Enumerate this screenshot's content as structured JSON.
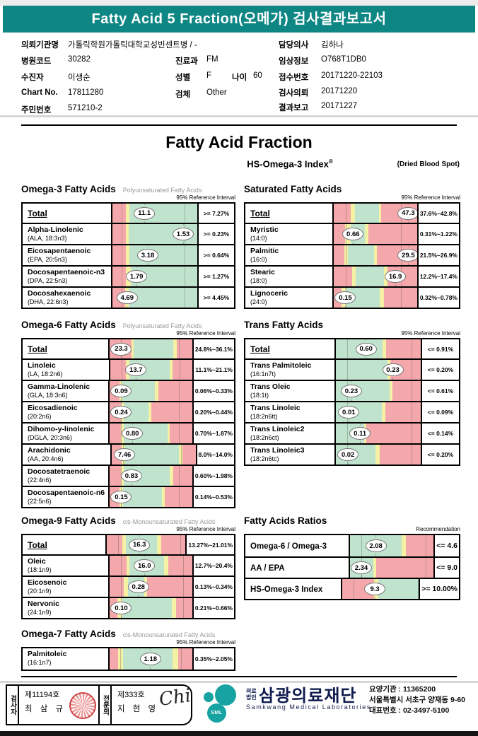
{
  "banner": {
    "title": "Fatty Acid 5 Fraction(오메가) 검사결과보고서"
  },
  "patient": {
    "org_label": "의뢰기관명",
    "org": "가톨릭학원가톨릭대학교성빈센트병 / -",
    "doctor_label": "담당의사",
    "doctor": "김하나",
    "hosp_code_label": "병원코드",
    "hosp_code": "30282",
    "dept_label": "진료과",
    "dept": "FM",
    "clinical_label": "임상정보",
    "clinical": "O768T1DB0",
    "patient_label": "수진자",
    "patient_name": "이생순",
    "sex_label": "성별",
    "sex": "F",
    "age_label": "나이",
    "age": "60",
    "recv_label": "접수번호",
    "recv_no": "20171220-22103",
    "chart_label": "Chart No.",
    "chart_no": "17811280",
    "specimen_label": "검체",
    "specimen": "Other",
    "request_label": "검사의뢰",
    "request_date": "20171220",
    "jumin_label": "주민번호",
    "jumin": "571210-2",
    "report_label": "결과보고",
    "report_date": "20171227"
  },
  "titles": {
    "main": "Fatty Acid Fraction",
    "hs_index": "HS-Omega-3 Index",
    "reg_mark": "®",
    "dried": "(Dried Blood Spot)"
  },
  "colors": {
    "banner": "#0d8684",
    "zone_red": "#f5a8ab",
    "zone_yellow": "#f4f0a4",
    "zone_green": "#bfe3cd",
    "navy": "#101c4e",
    "logo_teal": "#16a3a1",
    "stamp_red": "#cc3333"
  },
  "sections": [
    {
      "id": "omega3",
      "title": "Omega-3 Fatty Acids",
      "subtitle": "Polyunsaturated Fatty Acids",
      "scale_label": "95% Reference Interval",
      "gridlines": [
        11,
        84
      ],
      "rows": [
        {
          "name": "Total",
          "formula": "",
          "total": true,
          "value": "11.1",
          "pos": 37,
          "ref": ">= 7.27%",
          "segments": [
            [
              "r",
              16
            ],
            [
              "y",
              4
            ],
            [
              "g",
              80
            ]
          ]
        },
        {
          "name": "Alpha-Linolenic",
          "formula": "(ALA, 18:3n3)",
          "value": "1.53",
          "pos": 82,
          "ref": ">= 0.23%",
          "segments": [
            [
              "r",
              16
            ],
            [
              "y",
              3
            ],
            [
              "g",
              81
            ]
          ]
        },
        {
          "name": "Eicosapentaenoic",
          "formula": "(EPA, 20:5n3)",
          "value": "3.18",
          "pos": 41,
          "ref": ">= 0.64%",
          "segments": [
            [
              "r",
              16
            ],
            [
              "y",
              4
            ],
            [
              "g",
              80
            ]
          ]
        },
        {
          "name": "Docosapentaenoic-n3",
          "formula": "(DPA, 22:5n3)",
          "value": "1.79",
          "pos": 28,
          "ref": ">= 1.27%",
          "segments": [
            [
              "r",
              16
            ],
            [
              "y",
              6
            ],
            [
              "g",
              78
            ]
          ]
        },
        {
          "name": "Docosahexaenoic",
          "formula": "(DHA, 22:6n3)",
          "value": "4.69",
          "pos": 17,
          "ref": ">= 4.45%",
          "segments": [
            [
              "r",
              15
            ],
            [
              "y",
              4
            ],
            [
              "g",
              81
            ]
          ]
        }
      ]
    },
    {
      "id": "saturated",
      "title": "Saturated Fatty Acids",
      "subtitle": "",
      "scale_label": "95% Reference Interval",
      "gridlines": [
        14,
        78
      ],
      "rows": [
        {
          "name": "Total",
          "formula": "",
          "total": true,
          "value": "47.3",
          "pos": 86,
          "ref": "37.6%~42.8%",
          "segments": [
            [
              "r",
              20
            ],
            [
              "y",
              5
            ],
            [
              "g",
              29
            ],
            [
              "y",
              3
            ],
            [
              "r",
              43
            ]
          ]
        },
        {
          "name": "Myristic",
          "formula": "(14:0)",
          "value": "0.66",
          "pos": 22,
          "ref": "0.31%~1.22%",
          "segments": [
            [
              "r",
              13
            ],
            [
              "y",
              7
            ],
            [
              "g",
              17
            ],
            [
              "y",
              4
            ],
            [
              "r",
              59
            ]
          ]
        },
        {
          "name": "Palmitic",
          "formula": "(16:0)",
          "value": "29.5",
          "pos": 86,
          "ref": "21.5%~26.9%",
          "segments": [
            [
              "r",
              12
            ],
            [
              "y",
              5
            ],
            [
              "g",
              31
            ],
            [
              "y",
              4
            ],
            [
              "r",
              48
            ]
          ]
        },
        {
          "name": "Stearic",
          "formula": "(18:0)",
          "value": "16.9",
          "pos": 71,
          "ref": "12.2%~17.4%",
          "segments": [
            [
              "r",
              22
            ],
            [
              "y",
              4
            ],
            [
              "g",
              34
            ],
            [
              "y",
              4
            ],
            [
              "r",
              36
            ]
          ]
        },
        {
          "name": "Lignoceric",
          "formula": "(24:0)",
          "value": "0.15",
          "pos": 7,
          "ref": "0.32%~0.78%",
          "segments": [
            [
              "r",
              9
            ],
            [
              "y",
              5
            ],
            [
              "g",
              41
            ],
            [
              "y",
              5
            ],
            [
              "r",
              40
            ]
          ]
        }
      ]
    },
    {
      "id": "omega6",
      "title": "Omega-6 Fatty Acids",
      "subtitle": "Polyunsaturated Fatty Acids",
      "scale_label": "95% Reference Interval",
      "gridlines": [
        13,
        80
      ],
      "rows": [
        {
          "name": "Total",
          "formula": "",
          "total": true,
          "value": "23.3",
          "pos": 13,
          "ref": "24.8%~36.1%",
          "segments": [
            [
              "r",
              26
            ],
            [
              "y",
              3
            ],
            [
              "g",
              48
            ],
            [
              "y",
              4
            ],
            [
              "r",
              19
            ]
          ]
        },
        {
          "name": "Linoleic",
          "formula": "(LA, 18:2n6)",
          "value": "13.7",
          "pos": 30,
          "ref": "11.1%~21.1%",
          "segments": [
            [
              "r",
              19
            ],
            [
              "y",
              4
            ],
            [
              "g",
              49
            ],
            [
              "y",
              4
            ],
            [
              "r",
              24
            ]
          ]
        },
        {
          "name": "Gamma-Linolenic",
          "formula": "(GLA, 18:3n6)",
          "value": "0.09",
          "pos": 13,
          "ref": "0.06%~0.33%",
          "segments": [
            [
              "r",
              12
            ],
            [
              "y",
              3
            ],
            [
              "g",
              40
            ],
            [
              "y",
              4
            ],
            [
              "r",
              41
            ]
          ]
        },
        {
          "name": "Eicosadienoic",
          "formula": "(20:2n6)",
          "value": "0.24",
          "pos": 13,
          "ref": "0.20%~0.44%",
          "segments": [
            [
              "r",
              13
            ],
            [
              "y",
              4
            ],
            [
              "g",
              30
            ],
            [
              "y",
              3
            ],
            [
              "r",
              50
            ]
          ]
        },
        {
          "name": "Dihomo-y-linolenic",
          "formula": "(DGLA, 20:3n6)",
          "value": "0.80",
          "pos": 26,
          "ref": "0.70%~1.87%",
          "segments": [
            [
              "r",
              13
            ],
            [
              "y",
              4
            ],
            [
              "g",
              53
            ],
            [
              "y",
              3
            ],
            [
              "r",
              27
            ]
          ]
        },
        {
          "name": "Arachidonic",
          "formula": "(AA, 20:4n6)",
          "value": "7.46",
          "pos": 15,
          "ref": "8.0%~14.0%",
          "segments": [
            [
              "r",
              12
            ],
            [
              "y",
              4
            ],
            [
              "g",
              64
            ],
            [
              "y",
              4
            ],
            [
              "r",
              16
            ]
          ]
        },
        {
          "name": "Docosatetraenoic",
          "formula": "(22:4n6)",
          "value": "0.83",
          "pos": 25,
          "ref": "0.60%~1.98%",
          "segments": [
            [
              "r",
              13
            ],
            [
              "y",
              4
            ],
            [
              "g",
              56
            ],
            [
              "y",
              4
            ],
            [
              "r",
              23
            ]
          ]
        },
        {
          "name": "Docosapentaenoic-n6",
          "formula": "(22:5n6)",
          "value": "0.15",
          "pos": 13,
          "ref": "0.14%~0.53%",
          "segments": [
            [
              "r",
              12
            ],
            [
              "y",
              4
            ],
            [
              "g",
              47
            ],
            [
              "y",
              4
            ],
            [
              "r",
              33
            ]
          ]
        }
      ]
    },
    {
      "id": "trans",
      "title": "Trans Fatty Acids",
      "subtitle": "",
      "scale_label": "95% Reference Interval",
      "gridlines": [
        13,
        88
      ],
      "rows": [
        {
          "name": "Total",
          "formula": "",
          "total": true,
          "value": "0.60",
          "pos": 35,
          "ref": "<= 0.91%",
          "segments": [
            [
              "g",
              55
            ],
            [
              "y",
              4
            ],
            [
              "r",
              41
            ]
          ]
        },
        {
          "name": "Trans Palmitoleic",
          "formula": "(16:1n7t)",
          "value": "0.23",
          "pos": 66,
          "ref": "<= 0.20%",
          "segments": [
            [
              "g",
              61
            ],
            [
              "y",
              3
            ],
            [
              "r",
              36
            ]
          ]
        },
        {
          "name": "Trans Oleic",
          "formula": "(18:1t)",
          "value": "0.23",
          "pos": 18,
          "ref": "<= 0.61%",
          "segments": [
            [
              "g",
              63
            ],
            [
              "y",
              4
            ],
            [
              "r",
              33
            ]
          ]
        },
        {
          "name": "Trans Linoleic",
          "formula": "(18:2n6tt)",
          "value": "0.01",
          "pos": 15,
          "ref": "<= 0.09%",
          "segments": [
            [
              "g",
              54
            ],
            [
              "y",
              4
            ],
            [
              "r",
              42
            ]
          ]
        },
        {
          "name": "Trans Linoleic2",
          "formula": "(18:2n6ct)",
          "value": "0.11",
          "pos": 28,
          "ref": "<= 0.14%",
          "segments": [
            [
              "g",
              33
            ],
            [
              "y",
              3
            ],
            [
              "r",
              64
            ]
          ]
        },
        {
          "name": "Trans Linoleic3",
          "formula": "(18:2n6tc)",
          "value": "0.02",
          "pos": 14,
          "ref": "<= 0.20%",
          "segments": [
            [
              "g",
              47
            ],
            [
              "y",
              5
            ],
            [
              "r",
              48
            ]
          ]
        }
      ]
    },
    {
      "id": "omega9",
      "title": "Omega-9 Fatty Acids",
      "subtitle": "cis-Monounsaturated Fatty Acids",
      "scale_label": "95% Reference Interval",
      "gridlines": [
        13,
        85
      ],
      "rows": [
        {
          "name": "Total",
          "formula": "",
          "total": true,
          "value": "16.3",
          "pos": 38,
          "ref": "13.27%~21.01%",
          "segments": [
            [
              "r",
              20
            ],
            [
              "y",
              4
            ],
            [
              "g",
              40
            ],
            [
              "y",
              5
            ],
            [
              "r",
              31
            ]
          ]
        },
        {
          "name": "Oleic",
          "formula": "(18:1n9)",
          "value": "16.0",
          "pos": 40,
          "ref": "12.7%~20.4%",
          "segments": [
            [
              "r",
              20
            ],
            [
              "y",
              4
            ],
            [
              "g",
              42
            ],
            [
              "y",
              5
            ],
            [
              "r",
              29
            ]
          ]
        },
        {
          "name": "Eicosenoic",
          "formula": "(20:1n9)",
          "value": "0.28",
          "pos": 33,
          "ref": "0.13%~0.34%",
          "segments": [
            [
              "r",
              17
            ],
            [
              "y",
              5
            ],
            [
              "g",
              20
            ],
            [
              "y",
              3
            ],
            [
              "r",
              55
            ]
          ]
        },
        {
          "name": "Nervonic",
          "formula": "(24:1n9)",
          "value": "0.10",
          "pos": 7,
          "ref": "0.21%~0.66%",
          "segments": [
            [
              "r",
              9
            ],
            [
              "y",
              6
            ],
            [
              "g",
              60
            ],
            [
              "y",
              5
            ],
            [
              "r",
              20
            ]
          ]
        }
      ]
    },
    {
      "id": "ratios",
      "title": "Fatty Acids Ratios",
      "subtitle": "",
      "scale_label": "Recommendation",
      "gridlines": [
        13,
        88
      ],
      "single_line": true,
      "rows": [
        {
          "name": "Omega-6 / Omega-3",
          "formula": "",
          "value": "2.08",
          "pos": 30,
          "ref": "<= 4.6",
          "segments": [
            [
              "g",
              62
            ],
            [
              "y",
              5
            ],
            [
              "r",
              33
            ]
          ]
        },
        {
          "name": "AA / EPA",
          "formula": "",
          "value": "2.34",
          "pos": 12,
          "ref": "<= 9.0",
          "segments": [
            [
              "g",
              28
            ],
            [
              "y",
              3
            ],
            [
              "r",
              69
            ]
          ]
        },
        {
          "name": "HS-Omega-3 Index",
          "formula": "",
          "value": "9.3",
          "pos": 38,
          "ref": ">= 10.00%",
          "segments": [
            [
              "r",
              42
            ],
            [
              "y",
              5
            ],
            [
              "g",
              53
            ]
          ]
        }
      ]
    },
    {
      "id": "omega7",
      "title": "Omega-7 Fatty Acids",
      "subtitle": "cis-Monounsaturated Fatty Acids",
      "scale_label": "95% Reference Interval",
      "gridlines": [
        12,
        83
      ],
      "rows": [
        {
          "name": "Palmitoleic",
          "formula": "(16:1n7)",
          "value": "1.18",
          "pos": 47,
          "ref": "0.35%~2.05%",
          "segments": [
            [
              "r",
              10
            ],
            [
              "y",
              6
            ],
            [
              "g",
              60
            ],
            [
              "y",
              7
            ],
            [
              "r",
              17
            ]
          ]
        }
      ]
    }
  ],
  "footer": {
    "examiner_label": "검사자",
    "examiner_no": "제11194호",
    "examiner_name": "최 삼 규",
    "specialist_label": "전문의",
    "specialist_no": "제333호",
    "specialist_name": "지 현 영",
    "signature": "Chi",
    "logo_text": "SML",
    "org_prefix": "의료\n법인",
    "org_name": "삼광의료재단",
    "org_en": "Samkwang Medical Laboratories",
    "care_org": "요양기관 : 11365200",
    "address": "서울특별시 서초구 양재동 9-60",
    "tel": "대표번호 : 02-3497-5100"
  }
}
